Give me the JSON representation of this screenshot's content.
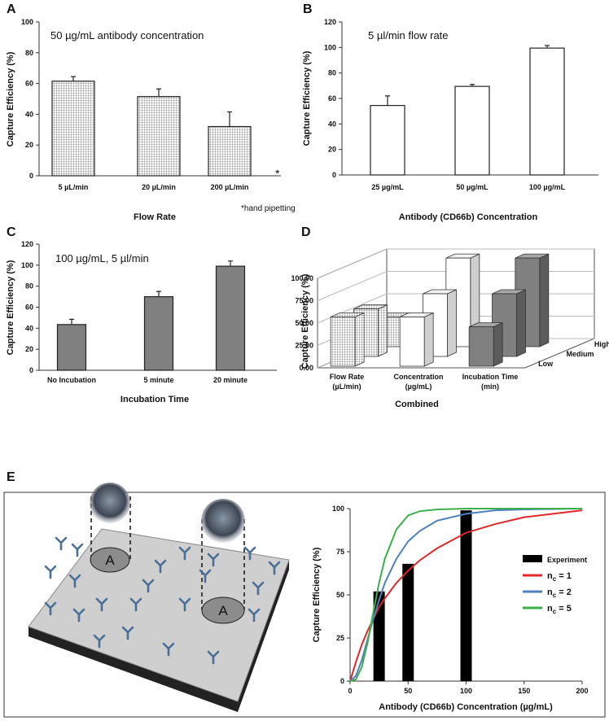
{
  "chart_data": [
    {
      "type": "bar",
      "panel": "A",
      "annotation": "50 µg/mL antibody concentration",
      "note": "*hand pipetting",
      "marker": "*",
      "ylabel": "Capture Efficiency (%)",
      "xlabel": "Flow Rate",
      "categories": [
        "5 µL/min",
        "20 µL/min",
        "200 µL/min"
      ],
      "values": [
        61.5,
        51.5,
        32
      ],
      "errors": [
        3,
        5,
        9.5
      ],
      "fill": "grid",
      "ylim": [
        0,
        100
      ],
      "yticks": [
        0,
        20,
        40,
        60,
        80,
        100
      ]
    },
    {
      "type": "bar",
      "panel": "B",
      "annotation": "5 µl/min flow rate",
      "ylabel": "Capture Efficiency (%)",
      "xlabel": "Antibody (CD66b) Concentration",
      "categories": [
        "25 µg/mL",
        "50 µg/mL",
        "100 µg/mL"
      ],
      "values": [
        54.5,
        69.5,
        99.5
      ],
      "errors": [
        7.5,
        1.5,
        2
      ],
      "fill": "#ffffff",
      "ylim": [
        0,
        120
      ],
      "yticks": [
        0,
        20,
        40,
        60,
        80,
        100,
        120
      ]
    },
    {
      "type": "bar",
      "panel": "C",
      "annotation": "100 µg/mL, 5 µl/min",
      "ylabel": "Capture Efficiency (%)",
      "xlabel": "Incubation Time",
      "categories": [
        "No  Incubation",
        "5 minute",
        "20 minute"
      ],
      "values": [
        43.5,
        70,
        99
      ],
      "errors": [
        5,
        5,
        5
      ],
      "fill": "#808080",
      "ylim": [
        0,
        120
      ],
      "yticks": [
        0,
        20,
        40,
        60,
        80,
        100,
        120
      ]
    },
    {
      "type": "bar3d",
      "panel": "D",
      "ylabel": "Capture Efficiency (%)",
      "xlabel": "Combined",
      "categories": [
        "Flow Rate",
        "Concentration",
        "Incubation Time"
      ],
      "category_units": [
        "(µL/min)",
        "(µg/mL)",
        "(min)"
      ],
      "fills": [
        "grid",
        "#ffffff",
        "#808080"
      ],
      "series": [
        {
          "name": "Low",
          "values": [
            55,
            55,
            44
          ]
        },
        {
          "name": "Medium",
          "values": [
            53,
            70,
            70
          ]
        },
        {
          "name": "High",
          "values": [
            33,
            99,
            99
          ]
        }
      ],
      "ylim": [
        0,
        100
      ],
      "yticks": [
        {
          "value": 0,
          "label": "0.00"
        },
        {
          "value": 25,
          "label": "25.00"
        },
        {
          "value": 50,
          "label": "50.00"
        },
        {
          "value": 75,
          "label": "75.00"
        },
        {
          "value": 100,
          "label": "100.00"
        }
      ]
    },
    {
      "type": "line",
      "panel": "E",
      "ylabel": "Capture Efficiency (%)",
      "xlabel": "Antibody (CD66b) Concentration (µg/mL)",
      "series": [
        {
          "name": "Experiment",
          "type": "bar",
          "color": "#000000",
          "x": [
            25,
            50,
            100
          ],
          "values": [
            52,
            68,
            99
          ]
        },
        {
          "name": "nc = 1",
          "color": "#e02828",
          "x": [
            0,
            5,
            10,
            15,
            20,
            25,
            30,
            40,
            50,
            60,
            75,
            100,
            125,
            150,
            200
          ],
          "values": [
            0,
            11,
            21,
            29,
            36,
            43,
            48,
            57,
            64,
            70,
            77,
            86,
            91,
            95,
            99
          ]
        },
        {
          "name": "nc = 2",
          "color": "#4f81bd",
          "x": [
            0,
            5,
            10,
            15,
            20,
            25,
            30,
            40,
            50,
            60,
            75,
            100,
            125,
            150,
            200
          ],
          "values": [
            0,
            3,
            12,
            24,
            36,
            47,
            57,
            71,
            81,
            87,
            93,
            97,
            99,
            99.5,
            100
          ]
        },
        {
          "name": "nc = 5",
          "color": "#3cb04a",
          "x": [
            0,
            5,
            10,
            15,
            20,
            25,
            30,
            40,
            50,
            60,
            75,
            100,
            125,
            150,
            200
          ],
          "values": [
            0,
            1,
            8,
            22,
            40,
            57,
            71,
            88,
            96,
            98.5,
            99.5,
            100,
            100,
            100,
            100
          ]
        }
      ],
      "xlim": [
        0,
        200
      ],
      "xticks": [
        0,
        50,
        100,
        150,
        200
      ],
      "ylim": [
        0,
        100
      ],
      "yticks": [
        0,
        25,
        50,
        75,
        100
      ]
    }
  ],
  "diagram": {
    "labels": [
      "A",
      "A"
    ]
  }
}
